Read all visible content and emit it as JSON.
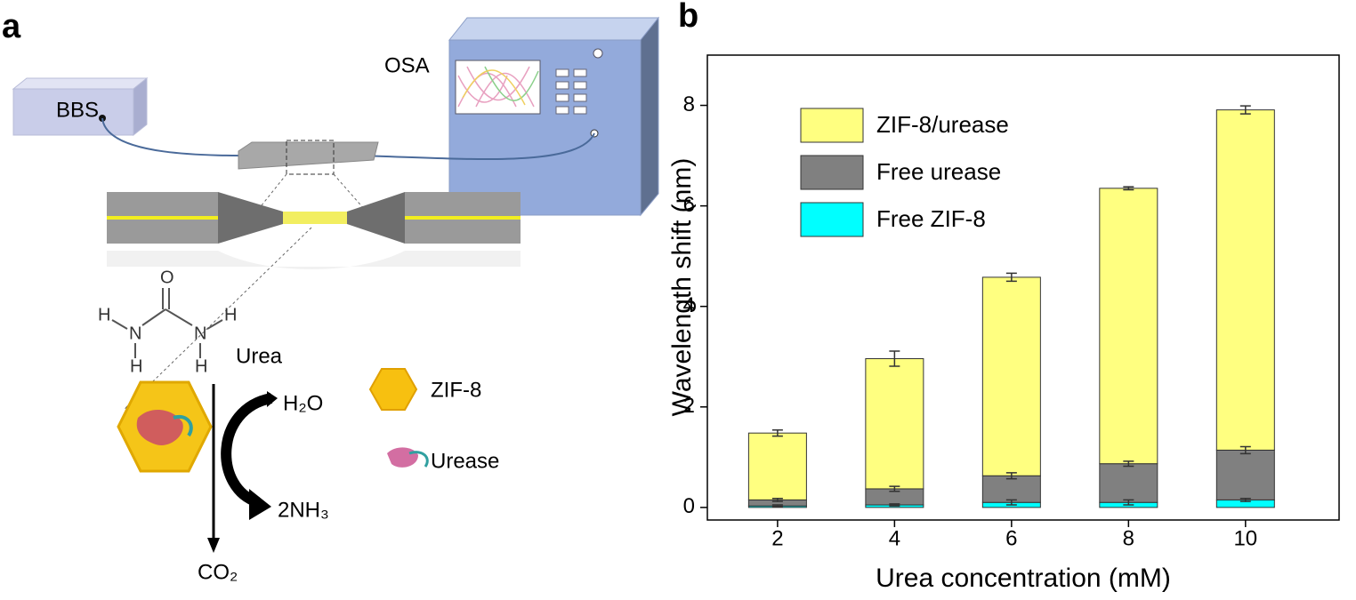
{
  "panel_labels": [
    "a",
    "b"
  ],
  "panel_a": {
    "instruments": [
      "BBS",
      "OSA"
    ],
    "molecule": {
      "atoms": [
        "O",
        "H",
        "N",
        "N",
        "H",
        "H",
        "H"
      ],
      "name": "Urea"
    },
    "reaction": {
      "water": "H₂O",
      "ammonia": "2NH₃",
      "carbon_dioxide": "CO₂"
    },
    "legend": [
      "ZIF-8",
      "Urease"
    ]
  },
  "chart_data": {
    "type": "stacked-bar",
    "x_label": "Urea concentration (mM)",
    "y_label": "Wavelength shift (nm)",
    "x": [
      2,
      4,
      6,
      8,
      10
    ],
    "xlim": [
      0.8,
      11.6
    ],
    "xticks": [
      2,
      4,
      6,
      8,
      10
    ],
    "ylim": [
      -0.25,
      9
    ],
    "yticks": [
      0,
      2,
      4,
      6,
      8
    ],
    "legend_position": "upper-left",
    "series": [
      {
        "name": "Free ZIF-8",
        "color": "#00ffff",
        "values": [
          0.03,
          0.05,
          0.1,
          0.1,
          0.15
        ],
        "errors": [
          0.02,
          0.02,
          0.05,
          0.05,
          0.03
        ]
      },
      {
        "name": "Free urease",
        "color": "#808080",
        "values": [
          0.12,
          0.32,
          0.53,
          0.77,
          0.99
        ],
        "errors": [
          0.03,
          0.05,
          0.06,
          0.05,
          0.07
        ]
      },
      {
        "name": "ZIF-8/urease",
        "color": "#ffff80",
        "values": [
          1.33,
          2.59,
          3.95,
          5.48,
          6.77
        ],
        "errors": [
          0.06,
          0.15,
          0.08,
          0.03,
          0.08
        ]
      }
    ]
  }
}
